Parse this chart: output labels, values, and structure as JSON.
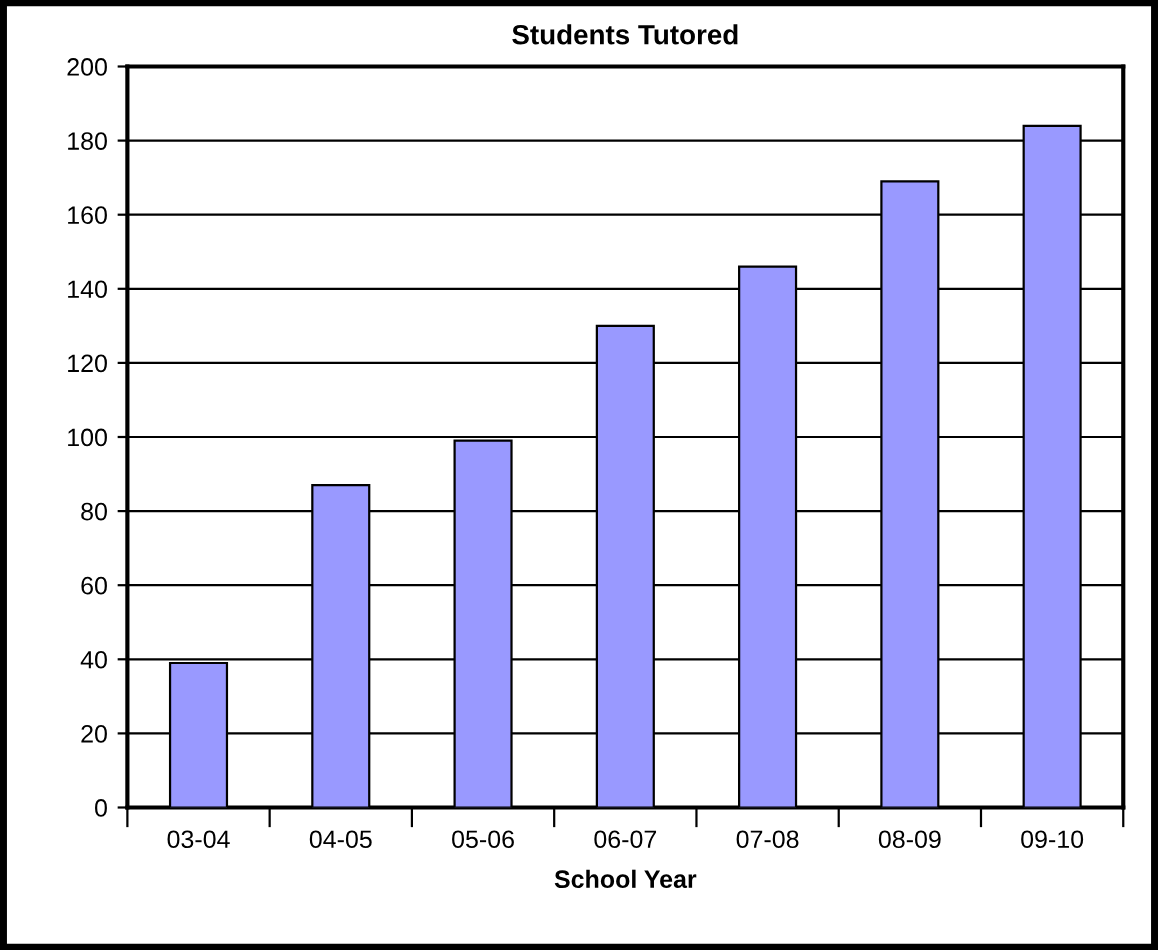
{
  "chart_data": {
    "type": "bar",
    "title": "Students Tutored",
    "xlabel": "School Year",
    "categories": [
      "03-04",
      "04-05",
      "05-06",
      "06-07",
      "07-08",
      "08-09",
      "09-10"
    ],
    "values": [
      39,
      87,
      99,
      130,
      146,
      169,
      184
    ],
    "color": "#9999ff",
    "ylim": [
      0,
      200
    ],
    "yticks": [
      0,
      20,
      40,
      60,
      80,
      100,
      120,
      140,
      160,
      180,
      200
    ],
    "grid": "y"
  }
}
